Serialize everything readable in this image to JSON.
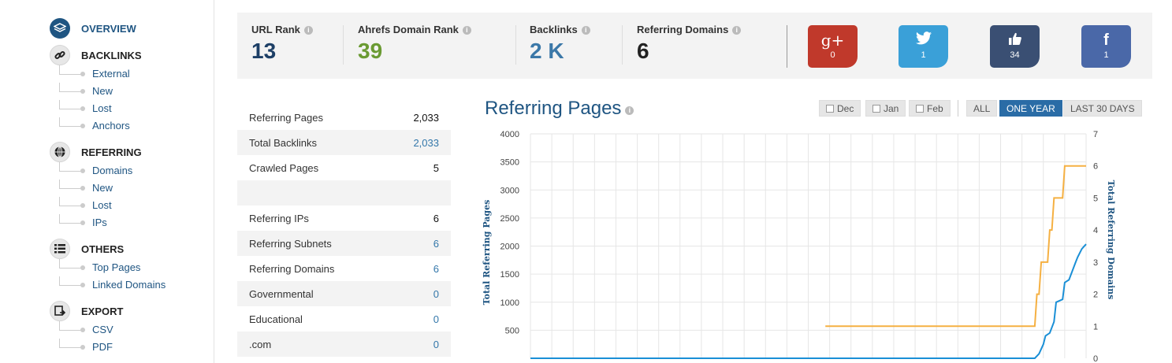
{
  "sidebar": {
    "sections": [
      {
        "label": "OVERVIEW",
        "icon": "layers-icon",
        "items": []
      },
      {
        "label": "BACKLINKS",
        "icon": "link-icon",
        "items": [
          "External",
          "New",
          "Lost",
          "Anchors"
        ]
      },
      {
        "label": "REFERRING",
        "icon": "globe-icon",
        "items": [
          "Domains",
          "New",
          "Lost",
          "IPs"
        ]
      },
      {
        "label": "OTHERS",
        "icon": "list-icon",
        "items": [
          "Top Pages",
          "Linked Domains"
        ]
      },
      {
        "label": "EXPORT",
        "icon": "export-icon",
        "items": [
          "CSV",
          "PDF"
        ]
      }
    ]
  },
  "stats": [
    {
      "label": "URL Rank",
      "value": "13",
      "color": "#1d3f66"
    },
    {
      "label": "Ahrefs Domain Rank",
      "value": "39",
      "color": "#6a9a32"
    },
    {
      "label": "Backlinks",
      "value": "2 K",
      "color": "#3b78a8"
    },
    {
      "label": "Referring Domains",
      "value": "6",
      "color": "#222222"
    }
  ],
  "info_glyph": "i",
  "social": [
    {
      "name": "google-plus",
      "glyph": "g+",
      "count": "0",
      "color": "#c0392b"
    },
    {
      "name": "twitter",
      "glyph": "🐦",
      "count": "1",
      "color": "#3aa0d8"
    },
    {
      "name": "facebook-like",
      "glyph": "👍",
      "count": "34",
      "color": "#3a4f73"
    },
    {
      "name": "facebook",
      "glyph": "f",
      "count": "1",
      "color": "#4a68a8"
    }
  ],
  "table": {
    "rows": [
      {
        "label": "Referring Pages",
        "value": "2,033",
        "link": false
      },
      {
        "label": "Total Backlinks",
        "value": "2,033",
        "link": true
      },
      {
        "label": "Crawled Pages",
        "value": "5",
        "link": false
      },
      {
        "label": "",
        "value": "",
        "link": false
      },
      {
        "label": "Referring IPs",
        "value": "6",
        "link": false
      },
      {
        "label": "Referring Subnets",
        "value": "6",
        "link": true
      },
      {
        "label": "Referring Domains",
        "value": "6",
        "link": true
      },
      {
        "label": "Governmental",
        "value": "0",
        "link": true
      },
      {
        "label": "Educational",
        "value": "0",
        "link": true
      },
      {
        "label": ".com",
        "value": "0",
        "link": true
      }
    ]
  },
  "chart_panel": {
    "title": "Referring Pages",
    "checkboxes": [
      "Dec",
      "Jan",
      "Feb"
    ],
    "ranges": [
      "ALL",
      "ONE YEAR",
      "LAST 30 DAYS"
    ],
    "active_range": "ONE YEAR"
  },
  "chart_data": {
    "type": "line",
    "y_left": {
      "label": "Total Referring Pages",
      "ticks": [
        500,
        1000,
        1500,
        2000,
        2500,
        3000,
        3500,
        4000
      ],
      "range": [
        0,
        4000
      ]
    },
    "y_right": {
      "label": "Total Referring Domains",
      "ticks": [
        0,
        1,
        2,
        3,
        4,
        5,
        6,
        7
      ],
      "range": [
        0,
        7
      ]
    },
    "x_range": [
      0,
      26
    ],
    "series": [
      {
        "axis": "left",
        "color": "#1a8fd6",
        "x": [
          0,
          23.6,
          23.8,
          24.0,
          24.1,
          24.3,
          24.5,
          24.6,
          24.9,
          25.0,
          25.2,
          25.5,
          25.6,
          25.8,
          26
        ],
        "y": [
          0,
          0,
          80,
          250,
          400,
          450,
          650,
          1000,
          1050,
          1350,
          1400,
          1700,
          1800,
          1950,
          2033
        ]
      },
      {
        "axis": "right",
        "color": "#f5b042",
        "x": [
          13.8,
          23.6,
          23.7,
          23.8,
          23.9,
          24.2,
          24.3,
          24.4,
          24.5,
          24.9,
          25.0,
          25.4,
          25.5,
          26
        ],
        "y": [
          1,
          1,
          2,
          2,
          3,
          3,
          4,
          4,
          5,
          5,
          6,
          6,
          6,
          6
        ]
      }
    ]
  }
}
